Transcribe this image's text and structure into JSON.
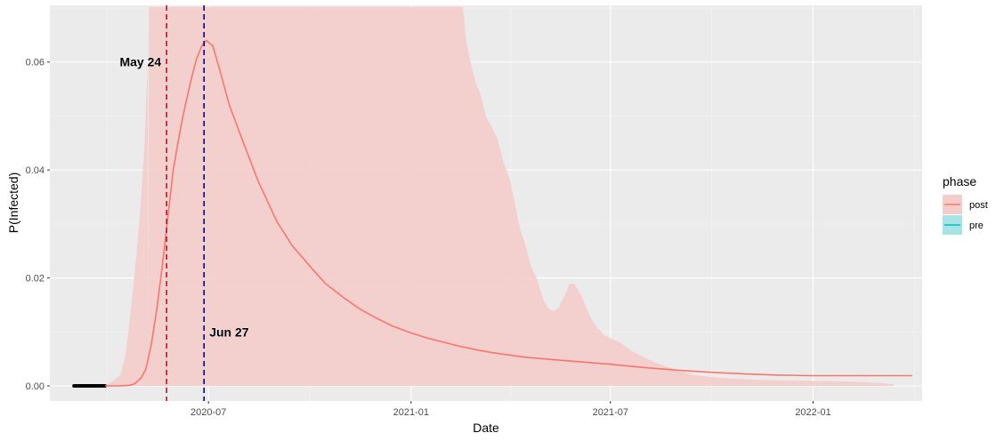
{
  "chart_data": {
    "type": "line",
    "title": "",
    "xlabel": "Date",
    "ylabel": "P(Infected)",
    "x_range": [
      "2020-02-08",
      "2022-04-10"
    ],
    "ylim": [
      -0.0028,
      0.0705
    ],
    "grid": true,
    "legend_position": "right",
    "x_ticks": [
      {
        "date": "2020-07-01",
        "label": "2020-07"
      },
      {
        "date": "2021-01-01",
        "label": "2021-01"
      },
      {
        "date": "2021-07-01",
        "label": "2021-07"
      },
      {
        "date": "2022-01-01",
        "label": "2022-01"
      }
    ],
    "y_ticks": [
      {
        "value": 0.0,
        "label": "0.00"
      },
      {
        "value": 0.02,
        "label": "0.02"
      },
      {
        "value": 0.04,
        "label": "0.04"
      },
      {
        "value": 0.06,
        "label": "0.06"
      }
    ],
    "legend": {
      "title": "phase",
      "items": [
        {
          "name": "post",
          "color": "#F8766D",
          "fill": "#F4CCCA"
        },
        {
          "name": "pre",
          "color": "#00BFC4",
          "fill": "#A8E4E6"
        }
      ]
    },
    "vlines": [
      {
        "date": "2020-05-24",
        "label": "May 24",
        "color": "#B2182B"
      },
      {
        "date": "2020-06-27",
        "label": "Jun 27",
        "color": "#00008B"
      }
    ],
    "series": [
      {
        "name": "pre",
        "color": "#000000",
        "x": [
          "2020-03-01",
          "2020-03-29"
        ],
        "y": [
          0.0,
          0.0
        ]
      },
      {
        "name": "post",
        "color": "#F8766D",
        "x": [
          "2020-03-29",
          "2020-04-10",
          "2020-04-20",
          "2020-04-25",
          "2020-05-01",
          "2020-05-05",
          "2020-05-10",
          "2020-05-15",
          "2020-05-20",
          "2020-05-25",
          "2020-05-30",
          "2020-06-05",
          "2020-06-10",
          "2020-06-15",
          "2020-06-20",
          "2020-06-25",
          "2020-06-29",
          "2020-07-05",
          "2020-07-12",
          "2020-07-20",
          "2020-08-01",
          "2020-08-15",
          "2020-09-01",
          "2020-09-15",
          "2020-10-01",
          "2020-10-15",
          "2020-11-01",
          "2020-11-15",
          "2020-12-01",
          "2020-12-15",
          "2021-01-01",
          "2021-01-15",
          "2021-02-01",
          "2021-02-15",
          "2021-03-01",
          "2021-03-15",
          "2021-04-01",
          "2021-04-15",
          "2021-05-01",
          "2021-06-01",
          "2021-07-01",
          "2021-08-01",
          "2021-09-01",
          "2021-10-01",
          "2021-11-01",
          "2021-12-01",
          "2022-01-01",
          "2022-02-01",
          "2022-03-01",
          "2022-04-01"
        ],
        "y": [
          0.0,
          0.0,
          0.0001,
          0.0004,
          0.0015,
          0.003,
          0.0075,
          0.014,
          0.022,
          0.031,
          0.04,
          0.047,
          0.052,
          0.0565,
          0.0605,
          0.063,
          0.064,
          0.063,
          0.058,
          0.052,
          0.0455,
          0.038,
          0.0305,
          0.026,
          0.0222,
          0.019,
          0.0163,
          0.0143,
          0.0125,
          0.0111,
          0.0098,
          0.0089,
          0.008,
          0.0073,
          0.0067,
          0.0062,
          0.0057,
          0.0053,
          0.005,
          0.0045,
          0.004,
          0.0034,
          0.0029,
          0.0025,
          0.0022,
          0.002,
          0.0019,
          0.0019,
          0.0019,
          0.0019
        ]
      }
    ],
    "ribbon": {
      "name": "post",
      "x": [
        "2020-05-07",
        "2020-05-08",
        "2020-05-10",
        "2020-05-13",
        "2020-05-16",
        "2020-05-19",
        "2020-05-22",
        "2021-02-17",
        "2021-02-20",
        "2021-02-24",
        "2021-03-01",
        "2021-03-05",
        "2021-03-10",
        "2021-03-15",
        "2021-03-20",
        "2021-03-25",
        "2021-04-01",
        "2021-04-05",
        "2021-04-10",
        "2021-04-15",
        "2021-04-20",
        "2021-04-25",
        "2021-05-01",
        "2021-05-05",
        "2021-05-10",
        "2021-05-15",
        "2021-05-20",
        "2021-05-25",
        "2021-05-30",
        "2021-06-05",
        "2021-06-10",
        "2021-06-15",
        "2021-06-20",
        "2021-06-25",
        "2021-07-01",
        "2021-07-10",
        "2021-07-20",
        "2021-08-01",
        "2021-08-15",
        "2021-09-01",
        "2021-09-15",
        "2021-10-01",
        "2021-11-01",
        "2021-12-01",
        "2022-01-01",
        "2022-02-01",
        "2022-03-01",
        "2022-03-15"
      ],
      "upper": [
        0.005,
        0.0702,
        0.0702,
        0.0702,
        0.0702,
        0.0702,
        0.0702,
        0.0702,
        0.064,
        0.06,
        0.056,
        0.054,
        0.05,
        0.048,
        0.046,
        0.042,
        0.038,
        0.034,
        0.029,
        0.026,
        0.022,
        0.02,
        0.016,
        0.0145,
        0.0138,
        0.0145,
        0.0165,
        0.019,
        0.0188,
        0.0165,
        0.014,
        0.012,
        0.0105,
        0.0095,
        0.0088,
        0.008,
        0.0065,
        0.0052,
        0.004,
        0.0028,
        0.002,
        0.0016,
        0.0012,
        0.001,
        0.0009,
        0.0008,
        0.0006,
        0.0003
      ],
      "lower": [
        0.0,
        0.0,
        0.0,
        0.0,
        0.0,
        0.0,
        0.0,
        0.0,
        0.0,
        0.0,
        0.0,
        0.0,
        0.0,
        0.0,
        0.0,
        0.0,
        0.0,
        0.0,
        0.0,
        0.0,
        0.0,
        0.0,
        0.0,
        0.0,
        0.0,
        0.0,
        0.0,
        0.0,
        0.0,
        0.0,
        0.0,
        0.0,
        0.0,
        0.0,
        0.0,
        0.0,
        0.0,
        0.0,
        0.0,
        0.0,
        0.0,
        0.0,
        0.0,
        0.0,
        0.0,
        0.0,
        0.0,
        0.0
      ],
      "rise": {
        "x": [
          "2020-03-27",
          "2020-04-05",
          "2020-04-12",
          "2020-04-17",
          "2020-04-22",
          "2020-04-27",
          "2020-05-01",
          "2020-05-04",
          "2020-05-07"
        ],
        "upper": [
          0.0,
          0.0008,
          0.002,
          0.006,
          0.015,
          0.025,
          0.035,
          0.045,
          0.06
        ]
      }
    }
  }
}
